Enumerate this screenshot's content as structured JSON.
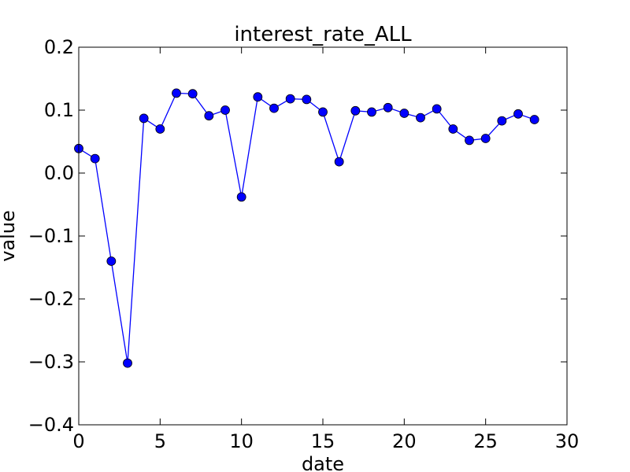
{
  "chart_data": {
    "type": "line",
    "title": "interest_rate_ALL",
    "xlabel": "date",
    "ylabel": "value",
    "xlim": [
      0,
      30
    ],
    "ylim": [
      -0.4,
      0.2
    ],
    "xticks": [
      0,
      5,
      10,
      15,
      20,
      25,
      30
    ],
    "xtick_labels": [
      "0",
      "5",
      "10",
      "15",
      "20",
      "25",
      "30"
    ],
    "yticks": [
      -0.4,
      -0.3,
      -0.2,
      -0.1,
      0.0,
      0.1,
      0.2
    ],
    "ytick_labels": [
      "−0.4",
      "−0.3",
      "−0.2",
      "−0.1",
      "0.0",
      "0.1",
      "0.2"
    ],
    "grid": false,
    "series": [
      {
        "color": "#0000ff",
        "x": [
          0,
          1,
          2,
          3,
          4,
          5,
          6,
          7,
          8,
          9,
          10,
          11,
          12,
          13,
          14,
          15,
          16,
          17,
          18,
          19,
          20,
          21,
          22,
          23,
          24,
          25,
          26,
          27,
          28
        ],
        "y": [
          0.039,
          0.023,
          -0.14,
          -0.302,
          0.087,
          0.07,
          0.127,
          0.126,
          0.091,
          0.1,
          -0.038,
          0.121,
          0.103,
          0.118,
          0.117,
          0.097,
          0.018,
          0.099,
          0.097,
          0.104,
          0.095,
          0.088,
          0.102,
          0.07,
          0.052,
          0.055,
          0.083,
          0.094,
          0.085
        ]
      }
    ]
  }
}
